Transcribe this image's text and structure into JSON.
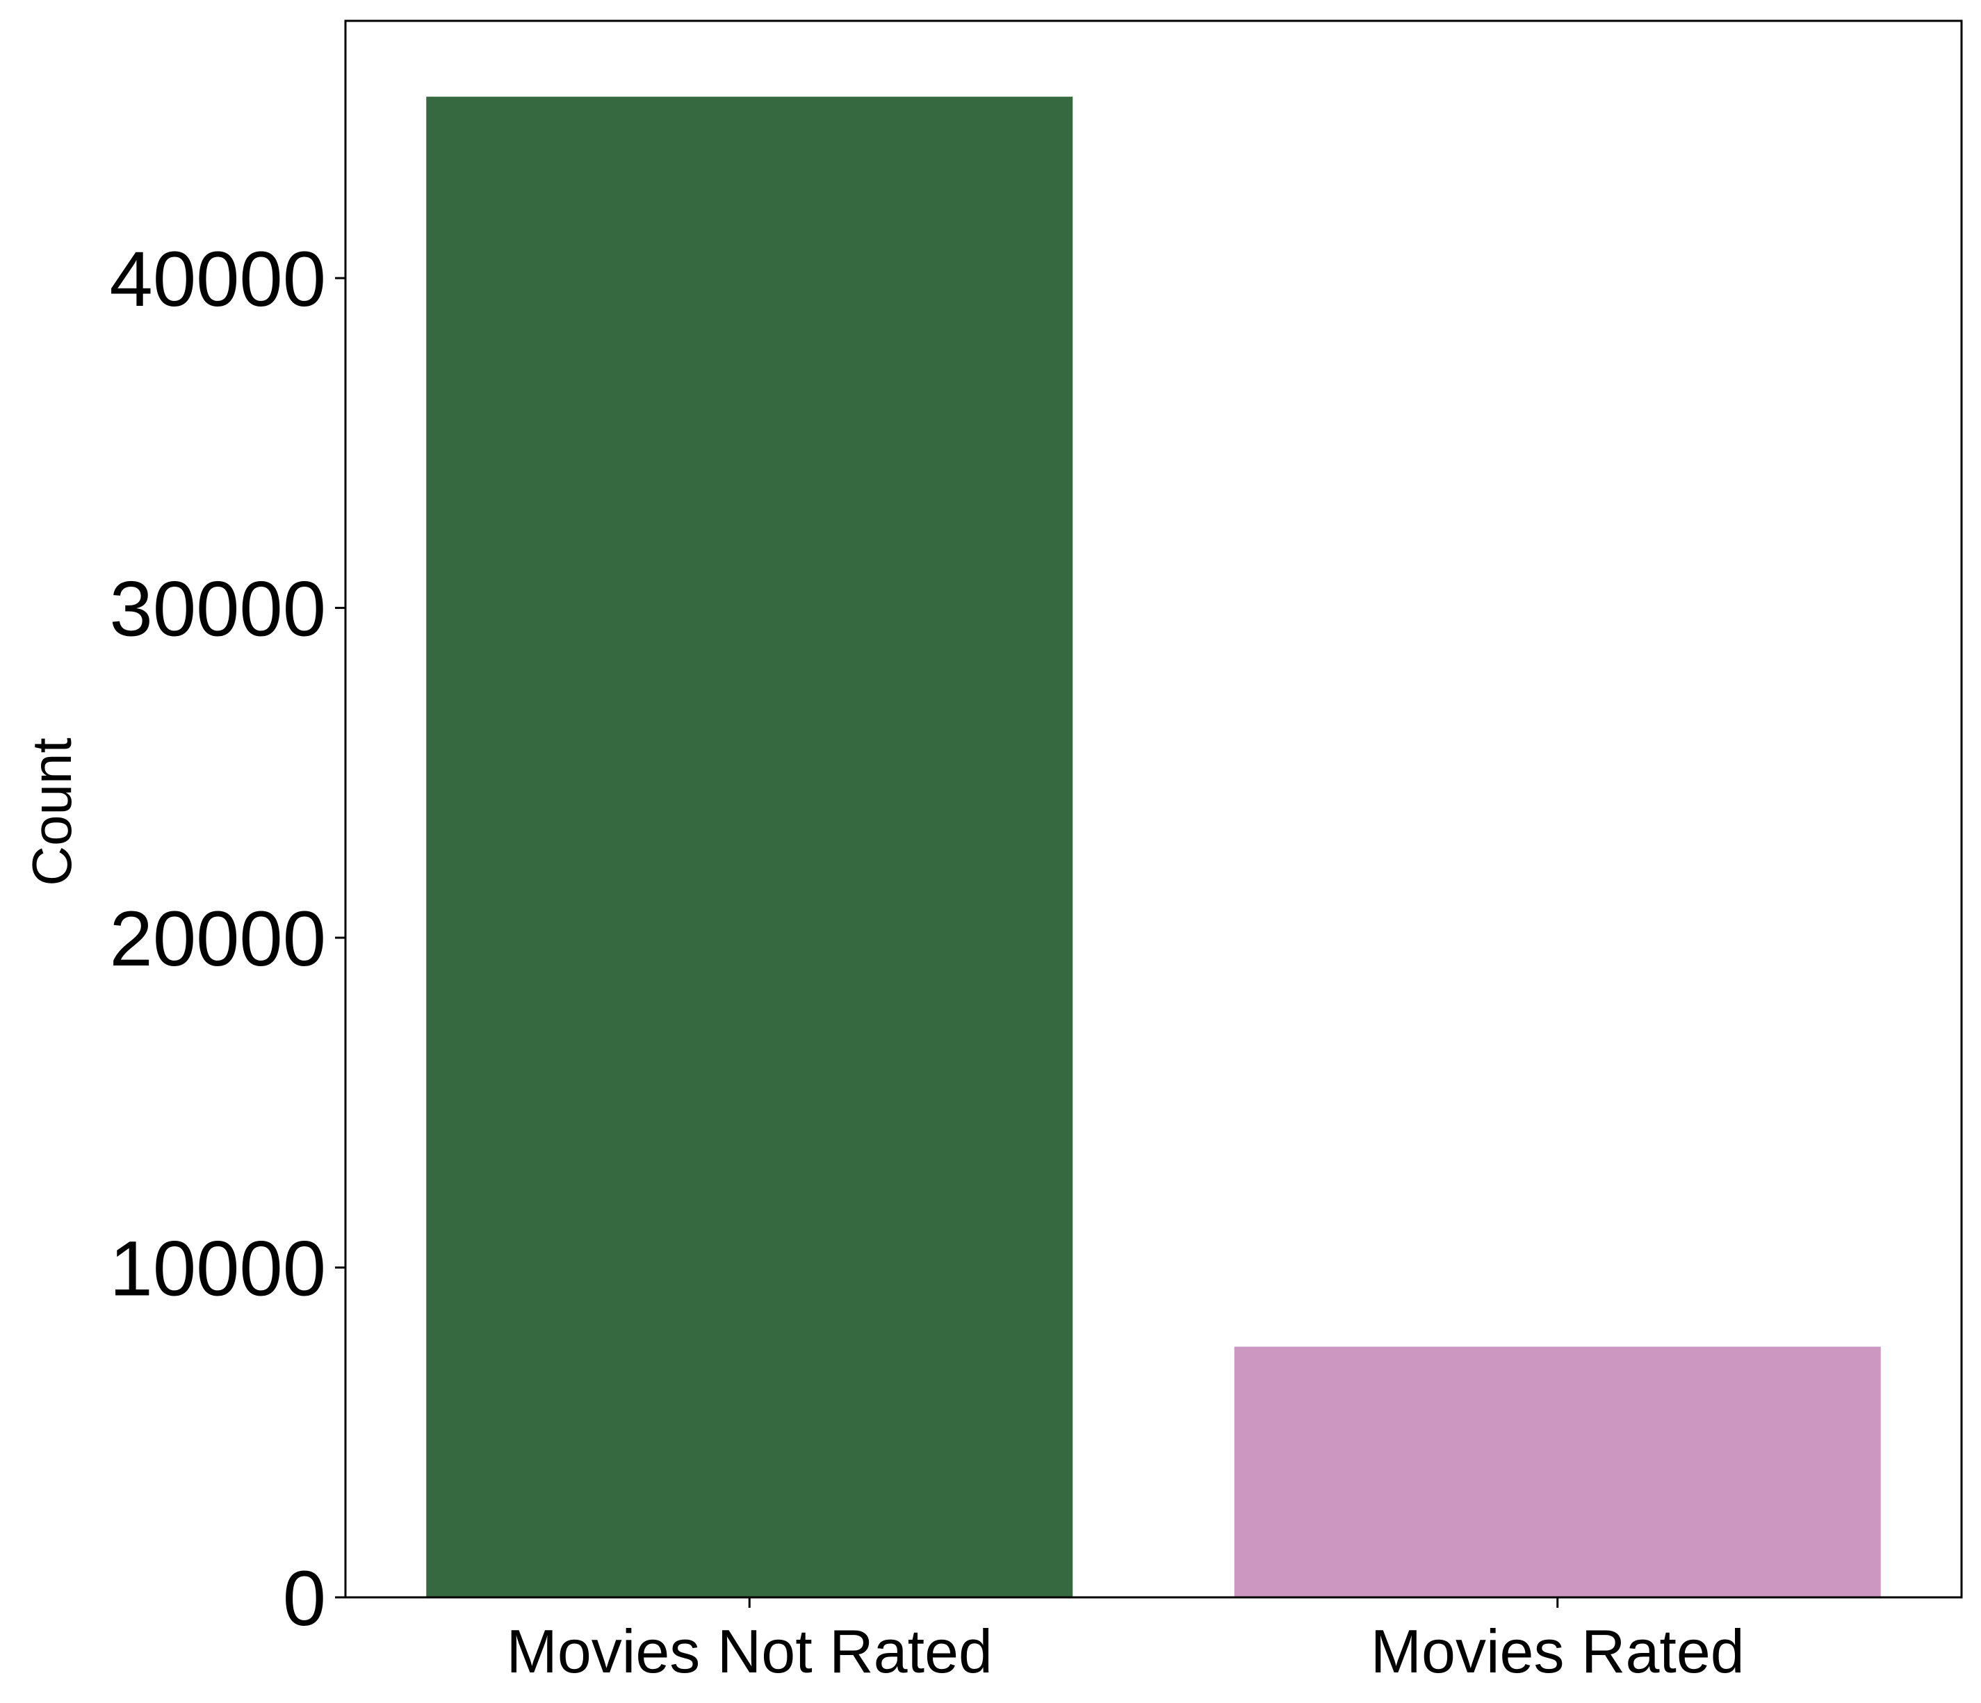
{
  "chart_data": {
    "type": "bar",
    "categories": [
      "Movies Not Rated",
      "Movies Rated"
    ],
    "values": [
      45500,
      7600
    ],
    "colors": [
      "#366940",
      "#cc97c1"
    ],
    "title": "",
    "xlabel": "",
    "ylabel": "Count",
    "ylim": [
      0,
      47800
    ],
    "yticks": [
      0,
      10000,
      20000,
      30000,
      40000
    ],
    "ytick_labels": [
      "0",
      "10000",
      "20000",
      "30000",
      "40000"
    ],
    "grid": false,
    "legend": false
  }
}
